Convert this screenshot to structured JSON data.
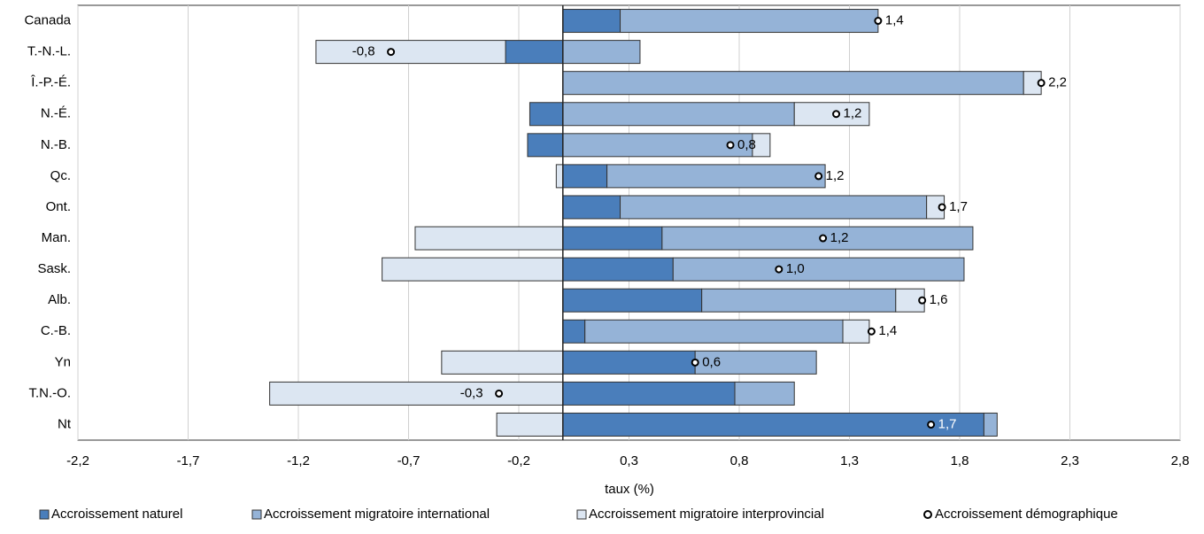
{
  "chart_data": {
    "type": "bar",
    "orientation": "horizontal",
    "stacked": true,
    "categories": [
      "Canada",
      "T.-N.-L.",
      "Î.-P.-É.",
      "N.-É.",
      "N.-B.",
      "Qc.",
      "Ont.",
      "Man.",
      "Sask.",
      "Alb.",
      "C.-B.",
      "Yn",
      "T.N.-O.",
      "Nt"
    ],
    "series": [
      {
        "name": "Accroissement naturel",
        "color": "#4a7ebb",
        "values": [
          0.26,
          -0.26,
          0,
          -0.15,
          -0.16,
          0.2,
          0.26,
          0.45,
          0.5,
          0.63,
          0.1,
          0.6,
          0.78,
          1.91
        ]
      },
      {
        "name": "Accroissement migratoire international",
        "color": "#95b3d7",
        "values": [
          1.17,
          0.35,
          2.09,
          1.05,
          0.86,
          0.99,
          1.39,
          1.41,
          1.32,
          0.88,
          1.17,
          0.55,
          0.27,
          0.06
        ]
      },
      {
        "name": "Accroissement migratoire interprovincial",
        "color": "#dce6f2",
        "values": [
          0,
          -0.86,
          0.08,
          0.34,
          0.08,
          -0.03,
          0.08,
          -0.67,
          -0.82,
          0.13,
          0.12,
          -0.55,
          -1.33,
          -0.3
        ]
      },
      {
        "name": "Accroissement démographique",
        "type": "scatter",
        "marker": "circle",
        "color": "#ffffff",
        "values": [
          1.43,
          -0.78,
          2.17,
          1.24,
          0.76,
          1.16,
          1.72,
          1.18,
          0.98,
          1.63,
          1.4,
          0.6,
          -0.29,
          1.67
        ],
        "value_labels": [
          "1,4",
          "-0,8",
          "2,2",
          "1,2",
          "0,8",
          "1,2",
          "1,7",
          "1,2",
          "1,0",
          "1,6",
          "1,4",
          "0,6",
          "-0,3",
          "1,7"
        ]
      }
    ],
    "xlabel": "taux (%)",
    "xlim": [
      -2.2,
      2.8
    ],
    "xticks": [
      {
        "value": -2.2,
        "label": "-2,2"
      },
      {
        "value": -1.7,
        "label": "-1,7"
      },
      {
        "value": -1.2,
        "label": "-1,2"
      },
      {
        "value": -0.7,
        "label": "-0,7"
      },
      {
        "value": -0.2,
        "label": "-0,2"
      },
      {
        "value": 0.3,
        "label": "0,3"
      },
      {
        "value": 0.8,
        "label": "0,8"
      },
      {
        "value": 1.3,
        "label": "1,3"
      },
      {
        "value": 1.8,
        "label": "1,8"
      },
      {
        "value": 2.3,
        "label": "2,3"
      },
      {
        "value": 2.8,
        "label": "2,8"
      }
    ],
    "grid": true,
    "legend": "bottom"
  }
}
